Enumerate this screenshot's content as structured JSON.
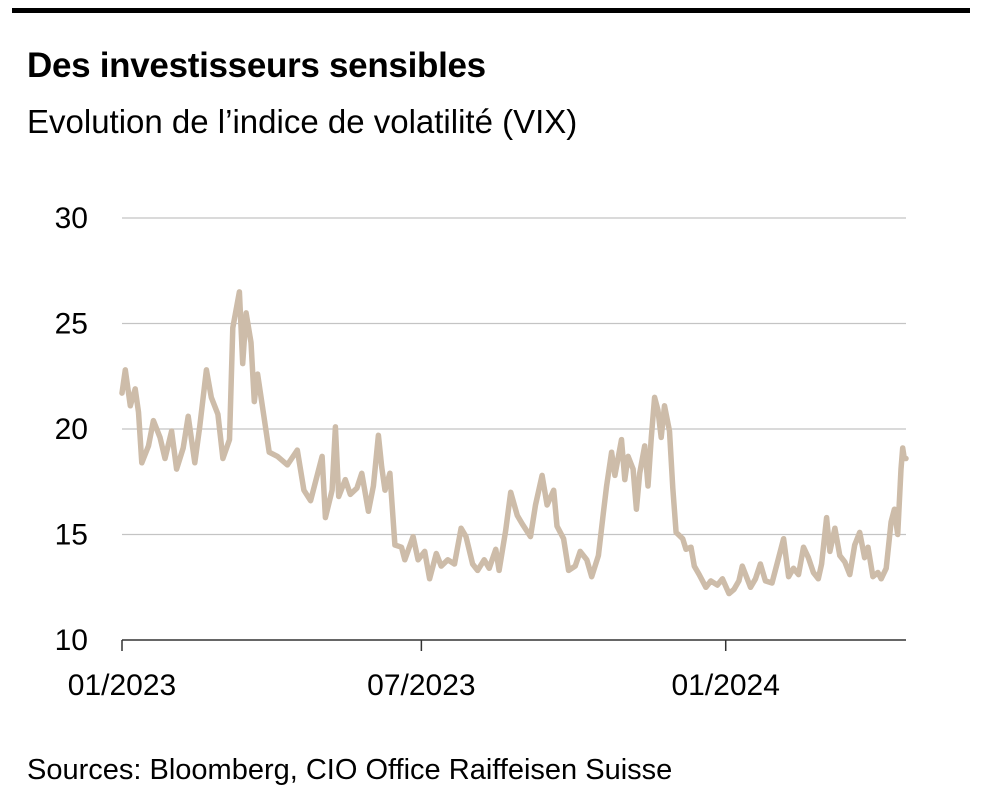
{
  "header": {
    "title": "Des investisseurs sensibles",
    "subtitle": "Evolution de l’indice de volatilité (VIX)"
  },
  "footer": {
    "source": "Sources: Bloomberg, CIO Office Raiffeisen Suisse"
  },
  "chart_data": {
    "type": "line",
    "title": "Des investisseurs sensibles",
    "subtitle": "Evolution de l’indice de volatilité (VIX)",
    "xlabel": "",
    "ylabel": "",
    "xlim": [
      "2023-01-01",
      "2024-04-19"
    ],
    "ylim": [
      10,
      30
    ],
    "y_ticks": [
      10,
      15,
      20,
      25,
      30
    ],
    "x_ticks": [
      {
        "date": "2023-01-01",
        "label": "01/2023"
      },
      {
        "date": "2023-07-01",
        "label": "07/2023"
      },
      {
        "date": "2024-01-01",
        "label": "01/2024"
      }
    ],
    "grid": "horizontal",
    "line_color": "#cdbca9",
    "series": [
      {
        "name": "",
        "points": [
          [
            "2023-01-01",
            21.7
          ],
          [
            "2023-01-03",
            22.8
          ],
          [
            "2023-01-06",
            21.1
          ],
          [
            "2023-01-09",
            21.9
          ],
          [
            "2023-01-11",
            20.8
          ],
          [
            "2023-01-13",
            18.4
          ],
          [
            "2023-01-17",
            19.2
          ],
          [
            "2023-01-20",
            20.4
          ],
          [
            "2023-01-24",
            19.6
          ],
          [
            "2023-01-27",
            18.6
          ],
          [
            "2023-01-31",
            19.9
          ],
          [
            "2023-02-03",
            18.1
          ],
          [
            "2023-02-07",
            19.1
          ],
          [
            "2023-02-10",
            20.6
          ],
          [
            "2023-02-14",
            18.4
          ],
          [
            "2023-02-17",
            20.1
          ],
          [
            "2023-02-21",
            22.8
          ],
          [
            "2023-02-24",
            21.5
          ],
          [
            "2023-02-28",
            20.7
          ],
          [
            "2023-03-03",
            18.6
          ],
          [
            "2023-03-07",
            19.5
          ],
          [
            "2023-03-09",
            24.8
          ],
          [
            "2023-03-13",
            26.5
          ],
          [
            "2023-03-15",
            23.1
          ],
          [
            "2023-03-17",
            25.5
          ],
          [
            "2023-03-20",
            24.1
          ],
          [
            "2023-03-22",
            21.3
          ],
          [
            "2023-03-24",
            22.6
          ],
          [
            "2023-03-28",
            20.5
          ],
          [
            "2023-03-31",
            18.9
          ],
          [
            "2023-04-05",
            18.7
          ],
          [
            "2023-04-11",
            18.3
          ],
          [
            "2023-04-17",
            19.0
          ],
          [
            "2023-04-21",
            17.1
          ],
          [
            "2023-04-25",
            16.6
          ],
          [
            "2023-04-28",
            17.5
          ],
          [
            "2023-05-02",
            18.7
          ],
          [
            "2023-05-04",
            15.8
          ],
          [
            "2023-05-08",
            17.1
          ],
          [
            "2023-05-10",
            20.1
          ],
          [
            "2023-05-12",
            16.8
          ],
          [
            "2023-05-16",
            17.6
          ],
          [
            "2023-05-19",
            16.9
          ],
          [
            "2023-05-23",
            17.2
          ],
          [
            "2023-05-26",
            17.9
          ],
          [
            "2023-05-30",
            16.1
          ],
          [
            "2023-06-02",
            17.3
          ],
          [
            "2023-06-05",
            19.7
          ],
          [
            "2023-06-07",
            18.2
          ],
          [
            "2023-06-09",
            17.1
          ],
          [
            "2023-06-12",
            17.9
          ],
          [
            "2023-06-15",
            14.5
          ],
          [
            "2023-06-19",
            14.4
          ],
          [
            "2023-06-21",
            13.8
          ],
          [
            "2023-06-26",
            14.9
          ],
          [
            "2023-06-29",
            13.8
          ],
          [
            "2023-07-03",
            14.2
          ],
          [
            "2023-07-06",
            12.9
          ],
          [
            "2023-07-10",
            14.1
          ],
          [
            "2023-07-13",
            13.5
          ],
          [
            "2023-07-17",
            13.8
          ],
          [
            "2023-07-21",
            13.6
          ],
          [
            "2023-07-25",
            15.3
          ],
          [
            "2023-07-28",
            14.9
          ],
          [
            "2023-08-01",
            13.6
          ],
          [
            "2023-08-04",
            13.3
          ],
          [
            "2023-08-08",
            13.8
          ],
          [
            "2023-08-11",
            13.4
          ],
          [
            "2023-08-15",
            14.3
          ],
          [
            "2023-08-17",
            13.3
          ],
          [
            "2023-08-21",
            15.2
          ],
          [
            "2023-08-24",
            17.0
          ],
          [
            "2023-08-28",
            15.9
          ],
          [
            "2023-08-31",
            15.5
          ],
          [
            "2023-09-05",
            14.9
          ],
          [
            "2023-09-08",
            16.4
          ],
          [
            "2023-09-12",
            17.8
          ],
          [
            "2023-09-15",
            16.4
          ],
          [
            "2023-09-19",
            17.1
          ],
          [
            "2023-09-21",
            15.4
          ],
          [
            "2023-09-25",
            14.8
          ],
          [
            "2023-09-28",
            13.3
          ],
          [
            "2023-10-02",
            13.5
          ],
          [
            "2023-10-05",
            14.2
          ],
          [
            "2023-10-09",
            13.8
          ],
          [
            "2023-10-12",
            13.0
          ],
          [
            "2023-10-16",
            14.0
          ],
          [
            "2023-10-19",
            16.0
          ],
          [
            "2023-10-21",
            17.3
          ],
          [
            "2023-10-24",
            18.9
          ],
          [
            "2023-10-26",
            17.8
          ],
          [
            "2023-10-30",
            19.5
          ],
          [
            "2023-11-01",
            17.6
          ],
          [
            "2023-11-03",
            18.7
          ],
          [
            "2023-11-06",
            18.1
          ],
          [
            "2023-11-08",
            16.2
          ],
          [
            "2023-11-10",
            17.9
          ],
          [
            "2023-11-13",
            19.2
          ],
          [
            "2023-11-15",
            17.3
          ],
          [
            "2023-11-17",
            19.6
          ],
          [
            "2023-11-19",
            21.5
          ],
          [
            "2023-11-21",
            20.9
          ],
          [
            "2023-11-23",
            19.6
          ],
          [
            "2023-11-25",
            21.1
          ],
          [
            "2023-11-28",
            19.9
          ],
          [
            "2023-11-30",
            17.2
          ],
          [
            "2023-12-02",
            15.1
          ],
          [
            "2023-12-06",
            14.8
          ],
          [
            "2023-12-08",
            14.3
          ],
          [
            "2023-12-11",
            14.4
          ],
          [
            "2023-12-13",
            13.5
          ],
          [
            "2023-12-16",
            13.1
          ],
          [
            "2023-12-20",
            12.5
          ],
          [
            "2023-12-23",
            12.8
          ],
          [
            "2023-12-27",
            12.6
          ],
          [
            "2023-12-30",
            12.9
          ],
          [
            "2024-01-03",
            12.2
          ],
          [
            "2024-01-06",
            12.4
          ],
          [
            "2024-01-09",
            12.8
          ],
          [
            "2024-01-11",
            13.5
          ],
          [
            "2024-01-13",
            13.1
          ],
          [
            "2024-01-16",
            12.5
          ],
          [
            "2024-01-19",
            12.9
          ],
          [
            "2024-01-22",
            13.6
          ],
          [
            "2024-01-25",
            12.8
          ],
          [
            "2024-01-29",
            12.7
          ],
          [
            "2024-02-01",
            13.6
          ],
          [
            "2024-02-05",
            14.8
          ],
          [
            "2024-02-08",
            13.0
          ],
          [
            "2024-02-11",
            13.4
          ],
          [
            "2024-02-14",
            13.1
          ],
          [
            "2024-02-17",
            14.4
          ],
          [
            "2024-02-20",
            13.9
          ],
          [
            "2024-02-23",
            13.2
          ],
          [
            "2024-02-26",
            12.9
          ],
          [
            "2024-02-28",
            13.6
          ],
          [
            "2024-03-02",
            15.8
          ],
          [
            "2024-03-04",
            14.2
          ],
          [
            "2024-03-07",
            15.3
          ],
          [
            "2024-03-10",
            14.0
          ],
          [
            "2024-03-13",
            13.7
          ],
          [
            "2024-03-16",
            13.1
          ],
          [
            "2024-03-19",
            14.5
          ],
          [
            "2024-03-22",
            15.1
          ],
          [
            "2024-03-25",
            13.9
          ],
          [
            "2024-03-27",
            14.4
          ],
          [
            "2024-03-30",
            13.0
          ],
          [
            "2024-04-02",
            13.2
          ],
          [
            "2024-04-04",
            12.9
          ],
          [
            "2024-04-07",
            13.4
          ],
          [
            "2024-04-10",
            15.6
          ],
          [
            "2024-04-12",
            16.2
          ],
          [
            "2024-04-14",
            15.0
          ],
          [
            "2024-04-16",
            18.1
          ],
          [
            "2024-04-17",
            19.1
          ],
          [
            "2024-04-18",
            18.6
          ],
          [
            "2024-04-19",
            18.6
          ]
        ]
      }
    ]
  }
}
